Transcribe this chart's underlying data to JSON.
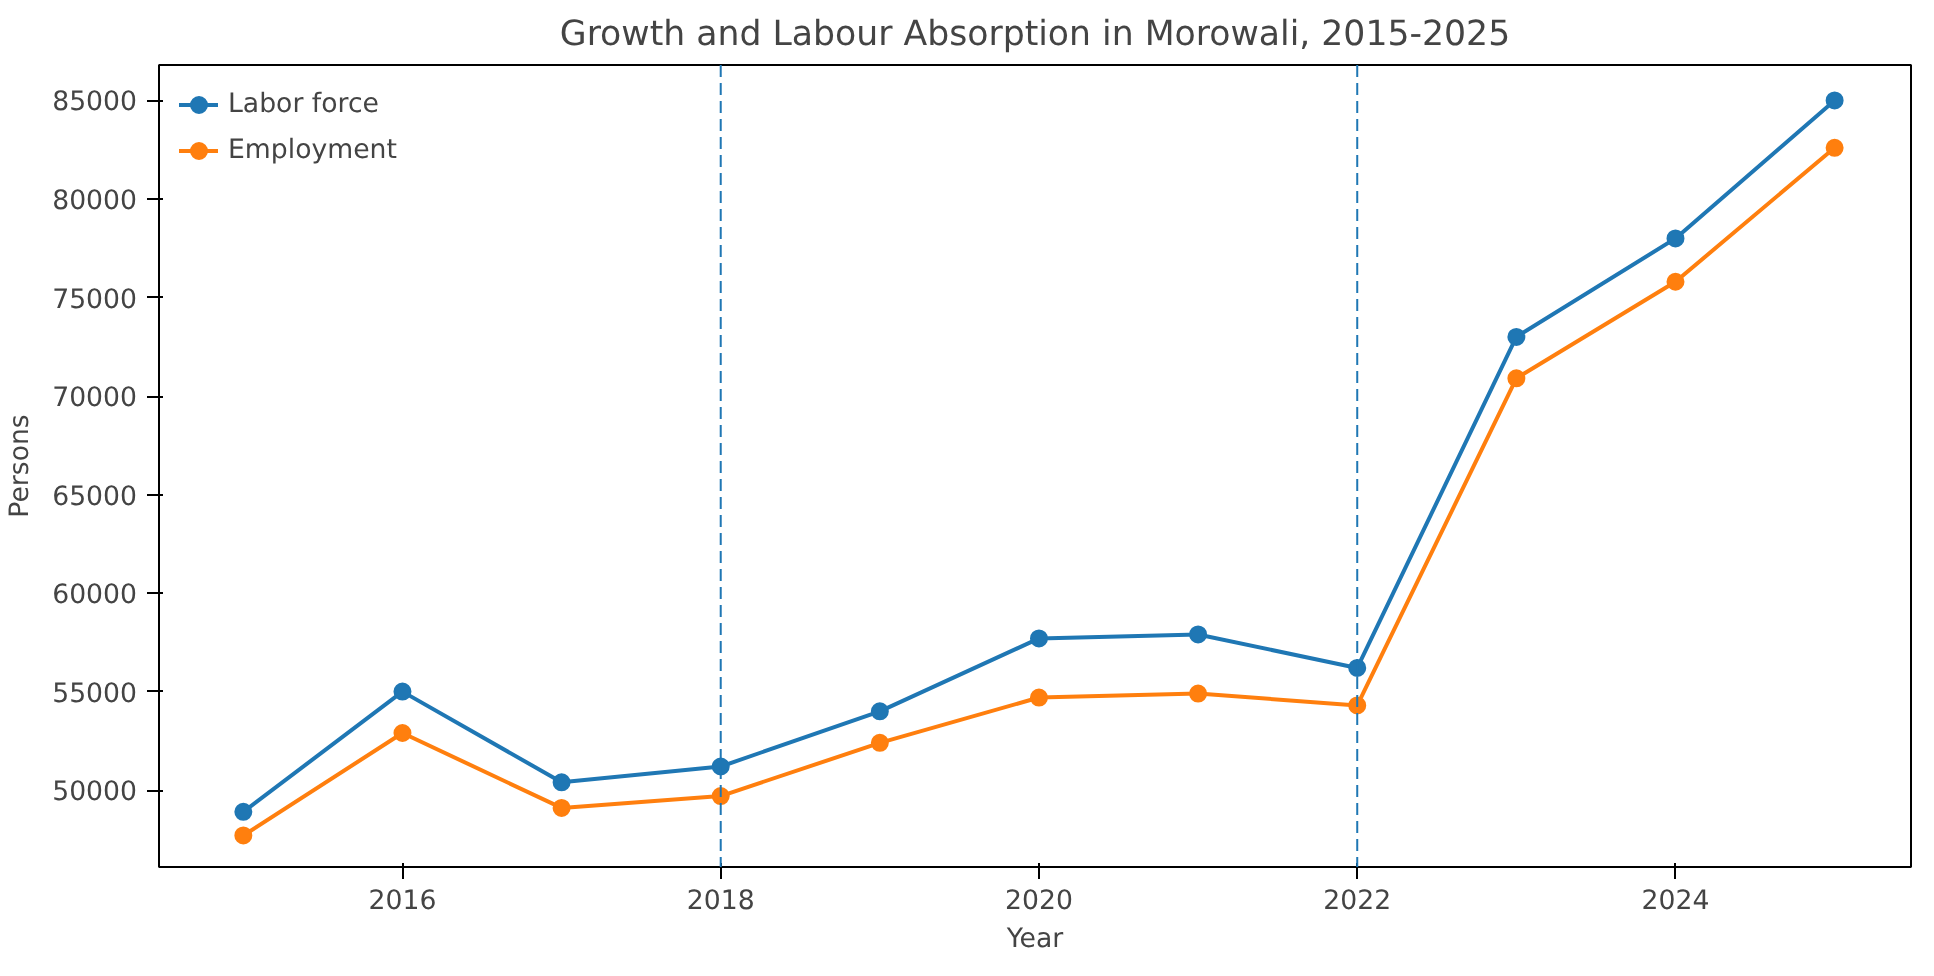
{
  "chart_data": {
    "type": "line",
    "title": "Growth and Labour Absorption in Morowali, 2015-2025",
    "xlabel": "Year",
    "ylabel": "Persons",
    "x": [
      2015,
      2016,
      2017,
      2018,
      2019,
      2020,
      2021,
      2022,
      2023,
      2024,
      2025
    ],
    "series": [
      {
        "name": "Labor force",
        "color": "#1f77b4",
        "values": [
          48900,
          55000,
          50400,
          51200,
          54000,
          57700,
          57900,
          56200,
          73000,
          78000,
          85000
        ]
      },
      {
        "name": "Employment",
        "color": "#ff7f0e",
        "values": [
          47700,
          52900,
          49100,
          49700,
          52400,
          54700,
          54900,
          54300,
          70900,
          75800,
          82600
        ]
      }
    ],
    "xlim": [
      2014.47,
      2025.48
    ],
    "xticks": [
      2016,
      2018,
      2020,
      2022,
      2024
    ],
    "ylim": [
      46100,
      86800
    ],
    "yticks": [
      50000,
      55000,
      60000,
      65000,
      70000,
      75000,
      80000,
      85000
    ],
    "ref_lines": [
      {
        "axis": "x",
        "value": 2018,
        "color": "#1f77b4",
        "line_style": "dashed"
      },
      {
        "axis": "x",
        "value": 2022,
        "color": "#1f77b4",
        "line_style": "dashed"
      }
    ],
    "legend": "top left",
    "grid": false,
    "marker": "circle",
    "line_style": "solid"
  }
}
